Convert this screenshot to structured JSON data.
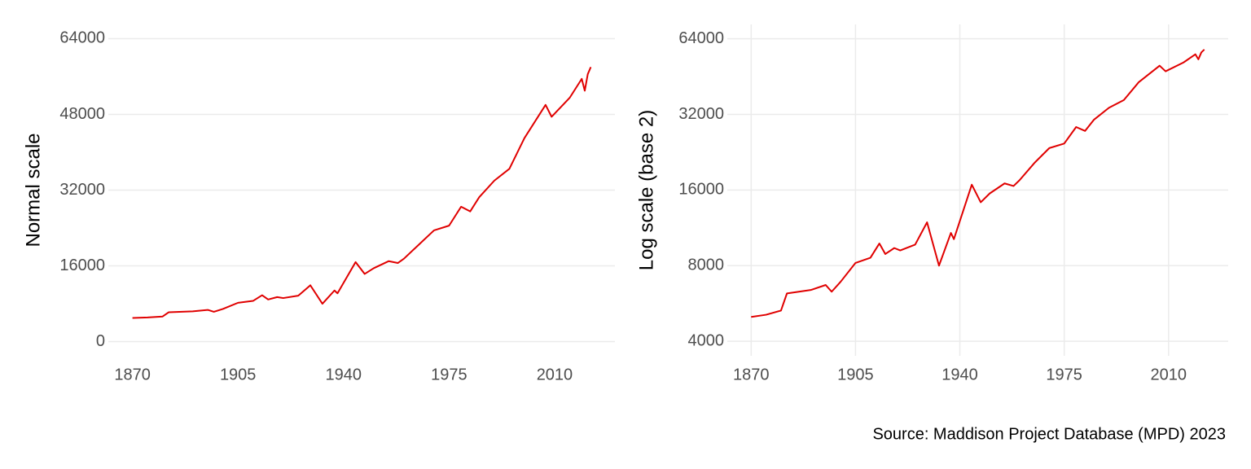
{
  "chart_data": [
    {
      "type": "line",
      "y_label": "Normal scale",
      "x": [
        1870,
        1875,
        1880,
        1882,
        1890,
        1895,
        1897,
        1900,
        1905,
        1910,
        1913,
        1915,
        1918,
        1920,
        1925,
        1929,
        1933,
        1937,
        1938,
        1944,
        1947,
        1950,
        1955,
        1958,
        1960,
        1965,
        1970,
        1975,
        1979,
        1982,
        1985,
        1990,
        1995,
        2000,
        2007,
        2009,
        2015,
        2019,
        2020,
        2021,
        2022
      ],
      "series": [
        {
          "color": "#e00000",
          "values": [
            5000,
            5100,
            5300,
            6200,
            6400,
            6700,
            6300,
            6900,
            8200,
            8600,
            9800,
            8900,
            9400,
            9200,
            9700,
            11900,
            8000,
            10800,
            10200,
            16800,
            14300,
            15500,
            17000,
            16600,
            17500,
            20500,
            23500,
            24500,
            28500,
            27500,
            30500,
            34000,
            36500,
            43000,
            50000,
            47500,
            51500,
            55500,
            53000,
            56500,
            58000
          ]
        }
      ],
      "xlim": [
        1862,
        2030
      ],
      "xticks": [
        1870,
        1905,
        1940,
        1975,
        2010
      ],
      "ylim": [
        -3000,
        67000
      ],
      "yticks": [
        0,
        16000,
        32000,
        48000,
        64000
      ],
      "log_scale": false,
      "grid": "y"
    },
    {
      "type": "line",
      "y_label": "Log scale (base 2)",
      "x": [
        1870,
        1875,
        1880,
        1882,
        1890,
        1895,
        1897,
        1900,
        1905,
        1910,
        1913,
        1915,
        1918,
        1920,
        1925,
        1929,
        1933,
        1937,
        1938,
        1944,
        1947,
        1950,
        1955,
        1958,
        1960,
        1965,
        1970,
        1975,
        1979,
        1982,
        1985,
        1990,
        1995,
        2000,
        2007,
        2009,
        2015,
        2019,
        2020,
        2021,
        2022
      ],
      "series": [
        {
          "color": "#e00000",
          "values": [
            5000,
            5100,
            5300,
            6200,
            6400,
            6700,
            6300,
            6900,
            8200,
            8600,
            9800,
            8900,
            9400,
            9200,
            9700,
            11900,
            8000,
            10800,
            10200,
            16800,
            14300,
            15500,
            17000,
            16600,
            17500,
            20500,
            23500,
            24500,
            28500,
            27500,
            30500,
            34000,
            36500,
            43000,
            50000,
            47500,
            51500,
            55500,
            53000,
            56500,
            58000
          ]
        }
      ],
      "xlim": [
        1862,
        2030
      ],
      "xticks": [
        1870,
        1905,
        1940,
        1975,
        2010
      ],
      "ylim": [
        3500,
        73000
      ],
      "yticks": [
        4000,
        8000,
        16000,
        32000,
        64000
      ],
      "log_scale": true,
      "log_base": 2,
      "grid": "both"
    }
  ],
  "caption": "Source: Maddison Project Database (MPD) 2023"
}
